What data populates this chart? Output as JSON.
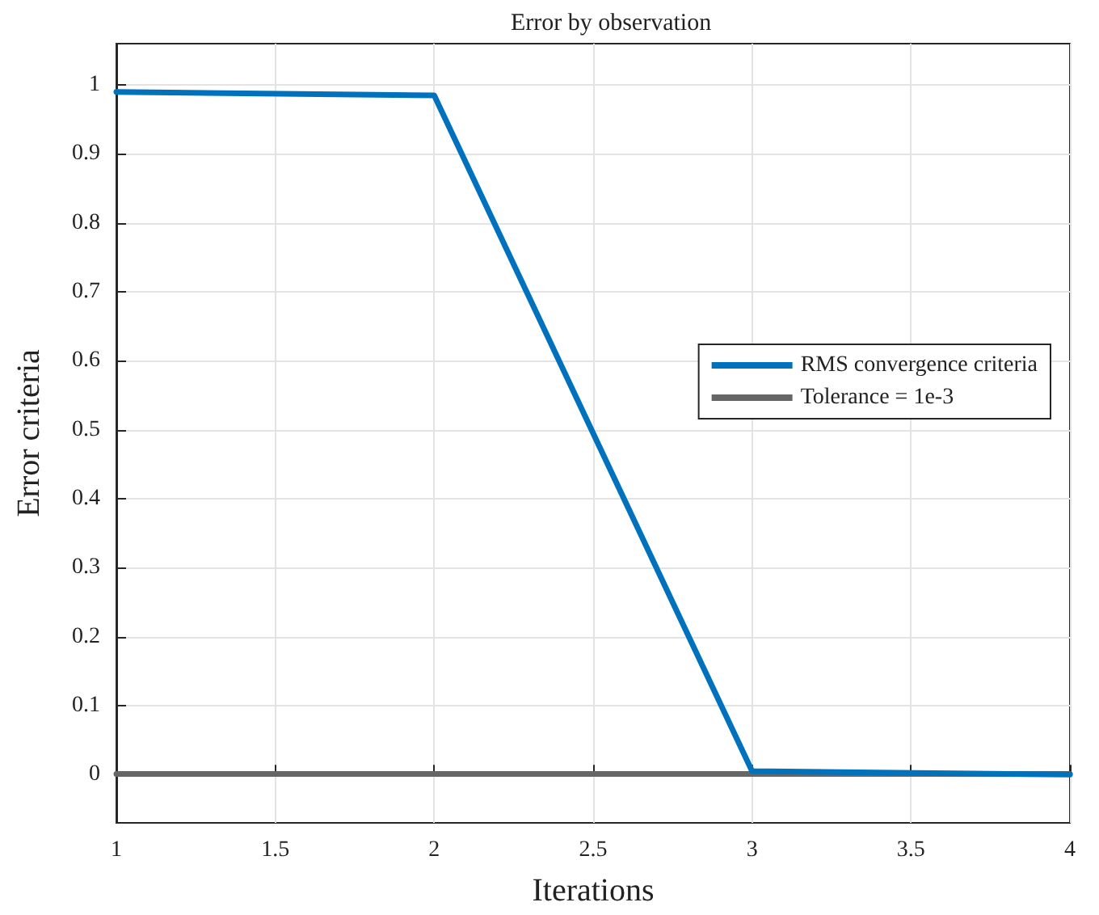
{
  "chart_data": {
    "type": "line",
    "title": "Error by observation",
    "xlabel": "Iterations",
    "ylabel": "Error criteria",
    "series": [
      {
        "name": "RMS convergence criteria",
        "color": "#0072bd",
        "x": [
          1,
          2,
          3,
          4
        ],
        "values": [
          0.99,
          0.985,
          0.005,
          0
        ]
      },
      {
        "name": "Tolerance = 1e-3",
        "color": "#666666",
        "x": [
          1,
          4
        ],
        "values": [
          0.001,
          0.001
        ]
      }
    ],
    "xlim": [
      1,
      4
    ],
    "xticks": [
      1,
      1.5,
      2,
      2.5,
      3,
      3.5,
      4
    ],
    "ylim": [
      -0.07,
      1.06
    ],
    "yticks": [
      0,
      0.1,
      0.2,
      0.3,
      0.4,
      0.5,
      0.6,
      0.7,
      0.8,
      0.9,
      1
    ],
    "grid": true,
    "legend": "right",
    "marker": "none",
    "line_style": "solid"
  }
}
